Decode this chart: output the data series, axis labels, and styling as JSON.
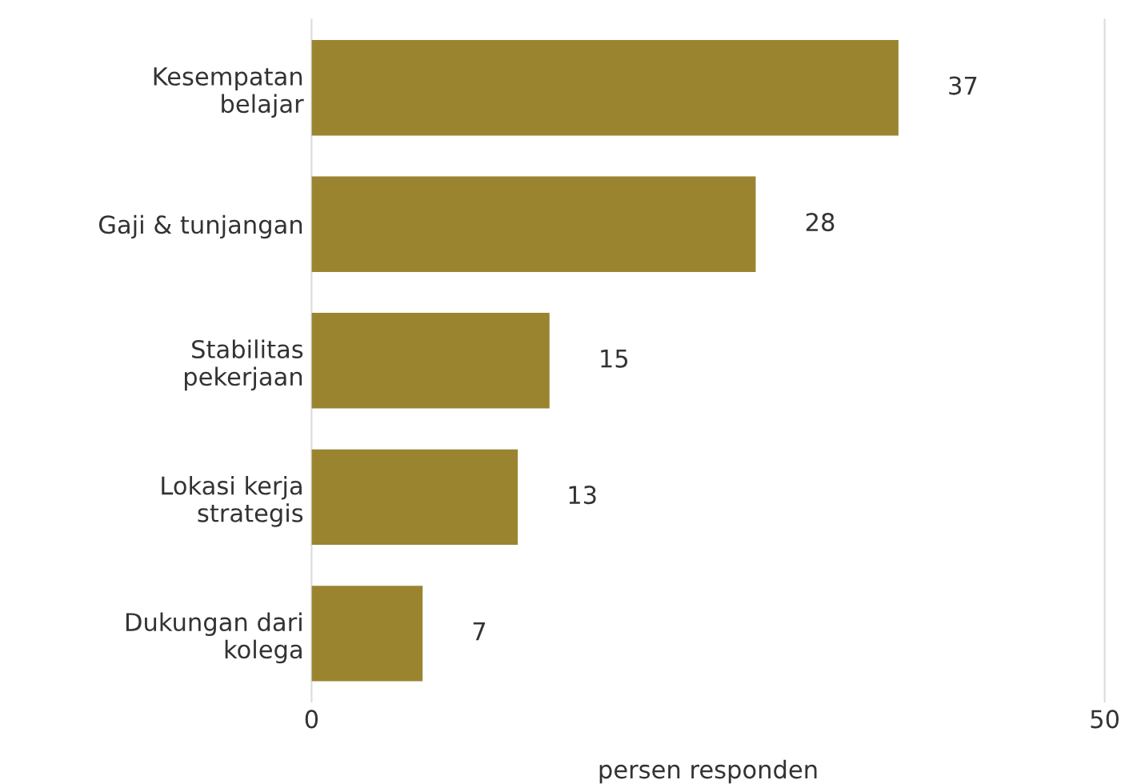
{
  "chart_data": {
    "type": "bar",
    "orientation": "horizontal",
    "xlabel": "persen responden",
    "categories": [
      "Kesempatan\nbelajar",
      "Gaji & tunjangan",
      "Stabilitas\npekerjaan",
      "Lokasi kerja\nstrategis",
      "Dukungan dari\nkolega"
    ],
    "values": [
      37,
      28,
      15,
      13,
      7
    ],
    "color": "#9a8430",
    "data_labels": true,
    "xlim": [
      0,
      50
    ],
    "xticks": [
      0,
      50
    ],
    "legend": false
  }
}
